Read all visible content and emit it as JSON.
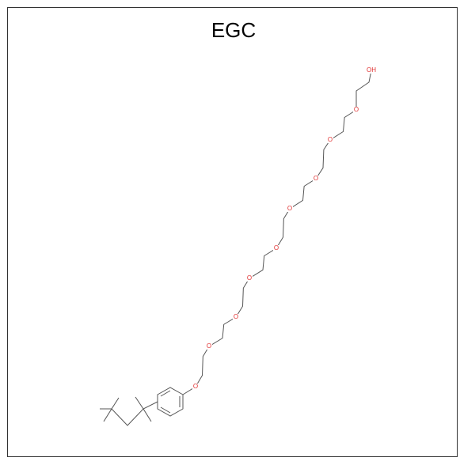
{
  "title": "EGC",
  "atoms": [
    {
      "label": "OH"
    },
    {
      "label": "O"
    },
    {
      "label": "O"
    },
    {
      "label": "O"
    },
    {
      "label": "O"
    },
    {
      "label": "O"
    },
    {
      "label": "O"
    },
    {
      "label": "O"
    },
    {
      "label": "O"
    },
    {
      "label": "O"
    }
  ]
}
